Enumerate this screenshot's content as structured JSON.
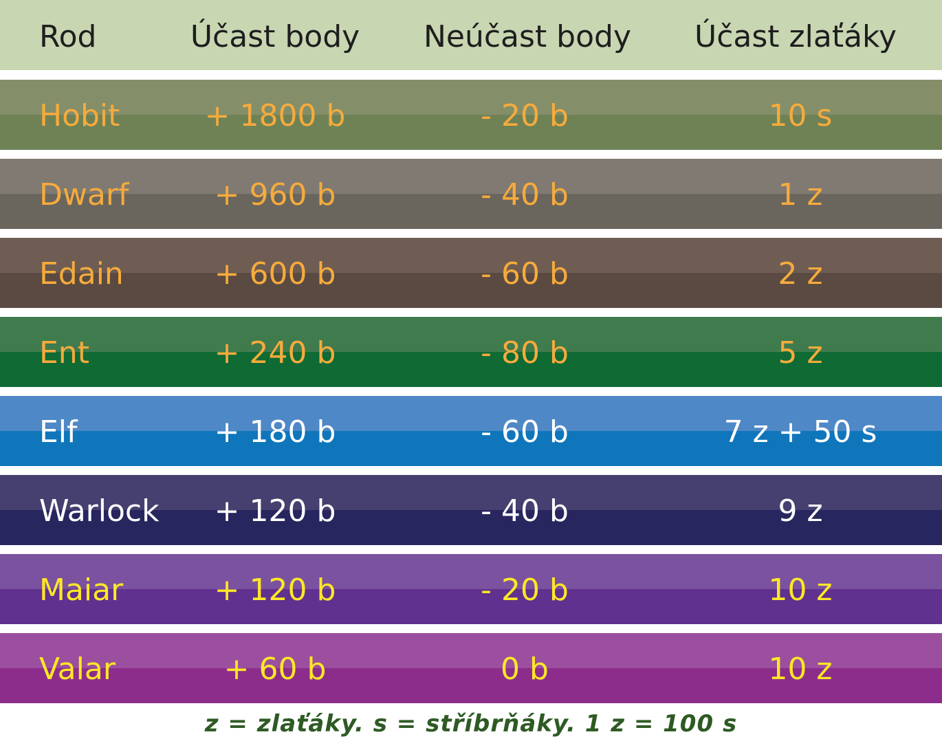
{
  "header": {
    "rod": "Rod",
    "ucast_body": "Účast body",
    "neucast_body": "Neúčast body",
    "ucast_zlataky": "Účast zlaťáky"
  },
  "rows": [
    {
      "rod": "Hobit",
      "ucast": "+ 1800 b",
      "neucast": "- 20 b",
      "zlataky": "10 s",
      "color_top": "#848f6a",
      "color_bottom": "#6f8256",
      "text_color": "#f6ab3c"
    },
    {
      "rod": "Dwarf",
      "ucast": "+ 960 b",
      "neucast": "- 40 b",
      "zlataky": "1 z",
      "color_top": "#807a72",
      "color_bottom": "#6a665d",
      "text_color": "#f6ab3c"
    },
    {
      "rod": "Edain",
      "ucast": "+ 600 b",
      "neucast": "- 60 b",
      "zlataky": "2 z",
      "color_top": "#6f5d54",
      "color_bottom": "#5a4a41",
      "text_color": "#f6ab3c"
    },
    {
      "rod": "Ent",
      "ucast": "+ 240 b",
      "neucast": "- 80 b",
      "zlataky": "5 z",
      "color_top": "#407b4e",
      "color_bottom": "#0f6a34",
      "text_color": "#f6ab3c"
    },
    {
      "rod": "Elf",
      "ucast": "+ 180 b",
      "neucast": "- 60 b",
      "zlataky": "7 z + 50 s",
      "color_top": "#4f88c6",
      "color_bottom": "#0f76bb",
      "text_color": "#ffffff"
    },
    {
      "rod": "Warlock",
      "ucast": "+ 120 b",
      "neucast": "- 40 b",
      "zlataky": "9 z",
      "color_top": "#45406f",
      "color_bottom": "#28265e",
      "text_color": "#ffffff"
    },
    {
      "rod": "Maiar",
      "ucast": "+ 120 b",
      "neucast": "- 20 b",
      "zlataky": "10 z",
      "color_top": "#7b52a0",
      "color_bottom": "#60318e",
      "text_color": "#ffe826"
    },
    {
      "rod": "Valar",
      "ucast": "+ 60 b",
      "neucast": "0 b",
      "zlataky": "10 z",
      "color_top": "#9c4f9e",
      "color_bottom": "#8c2d8c",
      "text_color": "#ffe826"
    }
  ],
  "footer": {
    "note": "z = zlaťáky. s  = stříbrňáky. 1 z = 100 s"
  }
}
